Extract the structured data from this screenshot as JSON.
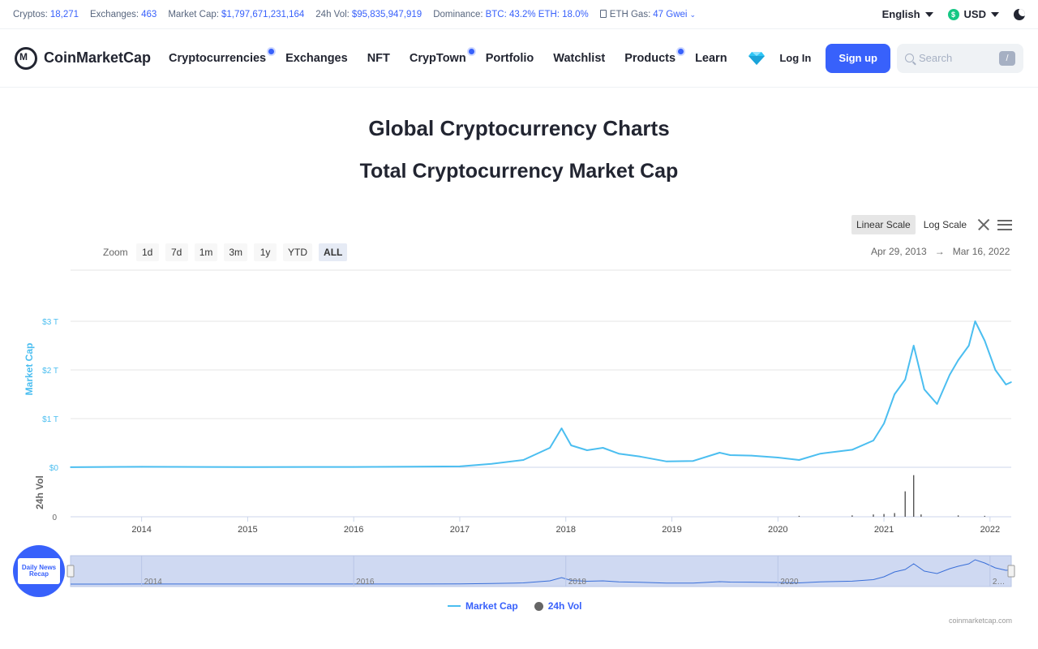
{
  "stats": {
    "cryptos_label": "Cryptos:",
    "cryptos": "18,271",
    "exchanges_label": "Exchanges:",
    "exchanges": "463",
    "marketcap_label": "Market Cap:",
    "marketcap": "$1,797,671,231,164",
    "vol_label": "24h Vol:",
    "vol": "$95,835,947,919",
    "dominance_label": "Dominance:",
    "dominance": "BTC: 43.2% ETH: 18.0%",
    "gas_label": "ETH Gas:",
    "gas": "47 Gwei",
    "language": "English",
    "currency": "USD"
  },
  "nav": {
    "brand": "CoinMarketCap",
    "items": [
      "Cryptocurrencies",
      "Exchanges",
      "NFT",
      "CrypTown",
      "Portfolio",
      "Watchlist",
      "Products",
      "Learn"
    ],
    "login": "Log In",
    "signup": "Sign up",
    "search_placeholder": "Search",
    "slash": "/"
  },
  "page": {
    "title": "Global Cryptocurrency Charts",
    "subtitle": "Total Cryptocurrency Market Cap"
  },
  "controls": {
    "linear": "Linear Scale",
    "log": "Log Scale",
    "zoom_label": "Zoom",
    "zoom": [
      "1d",
      "7d",
      "1m",
      "3m",
      "1y",
      "YTD",
      "ALL"
    ],
    "zoom_active": "ALL",
    "range_from": "Apr 29, 2013",
    "range_arrow": "→",
    "range_to": "Mar 16, 2022"
  },
  "chart_data": {
    "type": "line",
    "title": "Total Cryptocurrency Market Cap",
    "ylabel": "Market Cap",
    "ylabel2": "24h Vol",
    "y_ticks": [
      "$0",
      "$1 T",
      "$2 T",
      "$3 T"
    ],
    "y2_ticks": [
      "0"
    ],
    "ylim": [
      0,
      3
    ],
    "x_ticks": [
      "2014",
      "2015",
      "2016",
      "2017",
      "2018",
      "2019",
      "2020",
      "2021",
      "2022"
    ],
    "navigator_ticks": [
      "2014",
      "2016",
      "2018",
      "2020",
      "2…"
    ],
    "color": "#4bbef0",
    "series": [
      {
        "name": "Market Cap",
        "unit": "T USD",
        "x": [
          2013.33,
          2014.0,
          2015.0,
          2016.0,
          2017.0,
          2017.3,
          2017.6,
          2017.85,
          2017.96,
          2018.05,
          2018.2,
          2018.35,
          2018.5,
          2018.7,
          2018.95,
          2019.2,
          2019.45,
          2019.55,
          2019.75,
          2020.0,
          2020.2,
          2020.4,
          2020.7,
          2020.9,
          2021.0,
          2021.1,
          2021.2,
          2021.28,
          2021.38,
          2021.5,
          2021.62,
          2021.7,
          2021.8,
          2021.86,
          2021.95,
          2022.05,
          2022.15,
          2022.2
        ],
        "y": [
          0.002,
          0.01,
          0.005,
          0.007,
          0.018,
          0.07,
          0.15,
          0.4,
          0.8,
          0.45,
          0.35,
          0.4,
          0.28,
          0.22,
          0.12,
          0.13,
          0.3,
          0.25,
          0.24,
          0.2,
          0.15,
          0.28,
          0.36,
          0.55,
          0.9,
          1.5,
          1.8,
          2.5,
          1.6,
          1.3,
          1.9,
          2.2,
          2.5,
          3.0,
          2.6,
          2.0,
          1.7,
          1.75
        ]
      },
      {
        "name": "24h Vol",
        "x": [
          2020.2,
          2020.7,
          2020.9,
          2021.0,
          2021.1,
          2021.2,
          2021.28,
          2021.35,
          2021.7,
          2021.95
        ],
        "y": [
          0.02,
          0.03,
          0.05,
          0.06,
          0.08,
          0.55,
          0.9,
          0.05,
          0.03,
          0.02
        ]
      }
    ],
    "legend": [
      "Market Cap",
      "24h Vol"
    ],
    "credit": "coinmarketcap.com",
    "badge": "Daily News Recap"
  }
}
